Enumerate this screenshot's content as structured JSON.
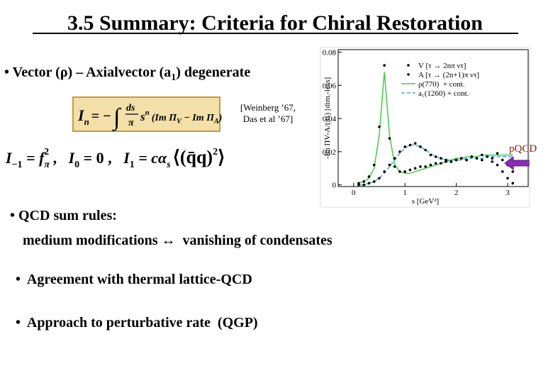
{
  "title": "3.5 Summary: Criteria for Chiral Restoration",
  "bullet_1": {
    "text": "• Vector (ρ) – Axialvector (a",
    "sub": "1",
    "tail": ") degenerate"
  },
  "formula_1": {
    "lhs": "I",
    "lhs_sub": "n",
    "eq": "= −",
    "integral": "∫",
    "num": "ds",
    "den": "π",
    "s": "s",
    "s_sup": "n",
    "open": "(Im Π",
    "v_sub": "V",
    "minus": " − Im Π",
    "a_sub": "A",
    "close": ")"
  },
  "citation": [
    "[Weinberg ’67,",
    "Das et al ’67]"
  ],
  "formula_2": {
    "i1": "I",
    "i1_sub": "−1",
    "eq1": " = f",
    "f_sub": "π",
    "f_sup": "2",
    "sep1": " ,   ",
    "i2": "I",
    "i2_sub": "0",
    "eq2": " = 0 ,   ",
    "i3": "I",
    "i3_sub": "1",
    "eq3": " = cα",
    "a_sub": "s",
    "cond": "⟨(q̄q)",
    "cond_sup": "2",
    "close": "⟩"
  },
  "bullet_2": [
    "• QCD sum rules:",
    "medium modifications ↔  vanishing of condensates"
  ],
  "bullet_3": "•  Agreement with thermal lattice-QCD",
  "bullet_4": "•  Approach to perturbative rate  (QGP)",
  "pqcd_label": "pQCD",
  "chart_data": {
    "type": "line",
    "x_label": "s [GeV²]",
    "y_label": "-Im ΠV-A/(πs) [dim.-less]",
    "x": [
      0.1,
      0.2,
      0.3,
      0.4,
      0.5,
      0.6,
      0.7,
      0.8,
      0.9,
      1.0,
      1.1,
      1.2,
      1.3,
      1.4,
      1.5,
      1.6,
      1.7,
      1.8,
      1.9,
      2.0,
      2.1,
      2.2,
      2.3,
      2.4,
      2.5,
      2.6,
      2.7,
      2.8,
      2.9,
      3.0,
      3.1
    ],
    "series": [
      {
        "name": "ρ(770)  + cont.",
        "color": "#44cc44",
        "style": "line",
        "values": [
          0.001,
          0.002,
          0.004,
          0.01,
          0.03,
          0.068,
          0.03,
          0.012,
          0.008,
          0.007,
          0.007,
          0.008,
          0.009,
          0.01,
          0.011,
          0.012,
          0.013,
          0.014,
          0.015,
          0.016,
          0.016,
          0.017,
          0.017,
          0.017,
          0.018,
          0.018,
          0.018,
          0.018,
          0.018,
          0.018,
          0.018
        ]
      },
      {
        "name": "a₁(1260) + cont.",
        "color": "#44aadd",
        "style": "dashed",
        "values": [
          0,
          0,
          0.001,
          0.002,
          0.004,
          0.007,
          0.011,
          0.015,
          0.019,
          0.022,
          0.024,
          0.024,
          0.023,
          0.021,
          0.019,
          0.017,
          0.016,
          0.015,
          0.015,
          0.015,
          0.015,
          0.016,
          0.016,
          0.016,
          0.016,
          0.017,
          0.017,
          0.017,
          0.017,
          0.017,
          0.017
        ]
      },
      {
        "name": "V [τ → 2nπ ντ]",
        "color": "#000000",
        "style": "points",
        "values": [
          0.001,
          0.002,
          0.005,
          0.012,
          0.035,
          0.072,
          0.028,
          0.011,
          0.008,
          0.008,
          0.009,
          0.01,
          0.011,
          0.011,
          0.012,
          0.013,
          0.013,
          0.014,
          0.014,
          0.015,
          0.016,
          0.015,
          0.017,
          0.016,
          0.018,
          0.017,
          0.016,
          0.019,
          0.015,
          0.012,
          0.008
        ]
      },
      {
        "name": "A [τ → (2n+1)π ντ]",
        "color": "#000000",
        "style": "points",
        "values": [
          0,
          0,
          0.001,
          0.002,
          0.004,
          0.008,
          0.012,
          0.016,
          0.02,
          0.023,
          0.024,
          0.025,
          0.023,
          0.021,
          0.018,
          0.017,
          0.016,
          0.015,
          0.014,
          0.015,
          0.016,
          0.015,
          0.017,
          0.016,
          0.015,
          0.017,
          0.014,
          0.012,
          0.008,
          0.004,
          0.001
        ]
      }
    ],
    "xlim": [
      -0.3,
      3.4
    ],
    "xticks": [
      0,
      1,
      2,
      3
    ],
    "ylim": [
      -0.001,
      0.0815
    ],
    "yticks": [
      0,
      0.02,
      0.04,
      0.06,
      0.08
    ],
    "legend": "upper right"
  }
}
